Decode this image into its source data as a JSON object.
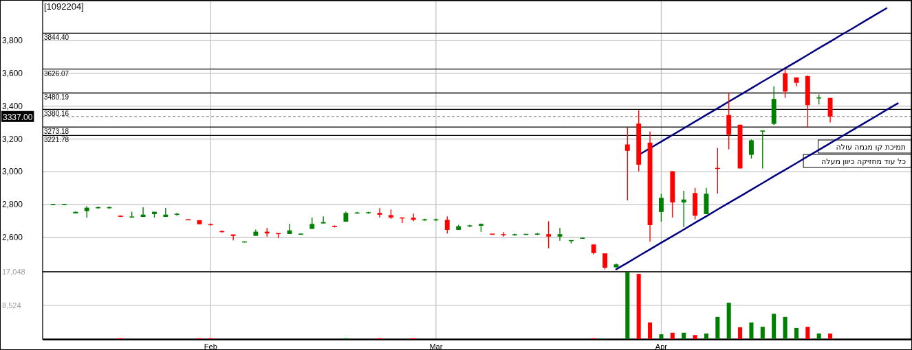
{
  "chart_data": [
    {
      "type": "candlestick",
      "title": "[1092204]",
      "categories": [
        null,
        null,
        null,
        null,
        null,
        null,
        null,
        null,
        null,
        null,
        null,
        null,
        null,
        null,
        null,
        null,
        null,
        null,
        null,
        null,
        null,
        null,
        null,
        null,
        null,
        null,
        null,
        null,
        null,
        null,
        null,
        null,
        null,
        null,
        null,
        null,
        null,
        null,
        null,
        null,
        null,
        null,
        null,
        null,
        null,
        null,
        null,
        null,
        null,
        null,
        null,
        null,
        null,
        null,
        null,
        null,
        null,
        null,
        null,
        null,
        null,
        null,
        null,
        null,
        null,
        null,
        null,
        null,
        null,
        null,
        null,
        null,
        null,
        null,
        null,
        null,
        null
      ],
      "ohlc": [
        [
          2800,
          2806,
          2797,
          2801
        ],
        [
          2800,
          2806,
          2797,
          2801
        ],
        [
          2747,
          2757,
          2747,
          2757
        ],
        [
          2761,
          2792,
          2722,
          2782
        ],
        [
          2781,
          2790,
          2775,
          2783
        ],
        [
          2781,
          2790,
          2775,
          2783
        ],
        [
          2731,
          2735,
          2725,
          2729
        ],
        [
          2724,
          2757,
          2724,
          2726
        ],
        [
          2726,
          2785,
          2726,
          2740
        ],
        [
          2743,
          2757,
          2722,
          2757
        ],
        [
          2726,
          2781,
          2726,
          2740
        ],
        [
          2741,
          2750,
          2733,
          2743
        ],
        [
          2709,
          2709,
          2708,
          2708
        ],
        [
          2706,
          2706,
          2681,
          2681
        ],
        [
          2679,
          2686,
          2674,
          2678
        ],
        [
          2637,
          2644,
          2631,
          2636
        ],
        [
          2619,
          2619,
          2583,
          2610
        ],
        [
          2573,
          2576,
          2570,
          2574
        ],
        [
          2611,
          2649,
          2611,
          2636
        ],
        [
          2636,
          2658,
          2606,
          2625
        ],
        [
          2625,
          2625,
          2597,
          2624
        ],
        [
          2622,
          2683,
          2622,
          2644
        ],
        [
          2620,
          2626,
          2617,
          2622
        ],
        [
          2653,
          2722,
          2653,
          2683
        ],
        [
          2686,
          2729,
          2686,
          2694
        ],
        [
          2669,
          2674,
          2662,
          2667
        ],
        [
          2697,
          2757,
          2697,
          2750
        ],
        [
          2749,
          2756,
          2749,
          2750
        ],
        [
          2750,
          2757,
          2745,
          2752
        ],
        [
          2750,
          2779,
          2722,
          2739
        ],
        [
          2737,
          2771,
          2714,
          2722
        ],
        [
          2720,
          2720,
          2689,
          2719
        ],
        [
          2721,
          2746,
          2700,
          2708
        ],
        [
          2707,
          2715,
          2702,
          2709
        ],
        [
          2707,
          2715,
          2702,
          2709
        ],
        [
          2708,
          2729,
          2625,
          2647
        ],
        [
          2647,
          2678,
          2647,
          2669
        ],
        [
          2670,
          2678,
          2664,
          2672
        ],
        [
          2672,
          2686,
          2635,
          2683
        ],
        [
          2622,
          2622,
          2620,
          2620
        ],
        [
          2618,
          2633,
          2606,
          2617
        ],
        [
          2616,
          2624,
          2611,
          2618
        ],
        [
          2619,
          2620,
          2619,
          2620
        ],
        [
          2620,
          2628,
          2615,
          2622
        ],
        [
          2621,
          2700,
          2535,
          2606
        ],
        [
          2606,
          2658,
          2581,
          2621
        ],
        [
          2581,
          2582,
          2564,
          2582
        ],
        [
          2595,
          2601,
          2592,
          2597
        ],
        [
          2558,
          2558,
          2497,
          2506
        ],
        [
          2504,
          2504,
          2406,
          2417
        ],
        [
          2419,
          2442,
          2419,
          2437
        ],
        [
          3167,
          3269,
          2826,
          3128
        ],
        [
          3294,
          3375,
          3003,
          3044
        ],
        [
          3178,
          3246,
          2576,
          2676
        ],
        [
          2756,
          2867,
          2697,
          2842
        ],
        [
          3004,
          3004,
          2722,
          2814
        ],
        [
          2814,
          2885,
          2664,
          2832
        ],
        [
          2871,
          2903,
          2711,
          2733
        ],
        [
          2743,
          2903,
          2743,
          2867
        ],
        [
          3022,
          3146,
          2868,
          3020
        ],
        [
          3346,
          3483,
          3137,
          3226
        ],
        [
          3287,
          3287,
          3021,
          3021
        ],
        [
          3104,
          3197,
          3081,
          3192
        ],
        [
          3248,
          3249,
          3021,
          3249
        ],
        [
          3292,
          3521,
          3285,
          3444
        ],
        [
          3600,
          3625,
          3451,
          3489
        ],
        [
          3575,
          3575,
          3521,
          3542
        ],
        [
          3583,
          3587,
          3271,
          3406
        ],
        [
          3449,
          3472,
          3410,
          3451
        ],
        [
          3450,
          3450,
          3301,
          3337
        ],
        null,
        null,
        null,
        null,
        null,
        null,
        null
      ],
      "colors": [
        "#008000",
        "#008000",
        "#008000",
        "#008000",
        "#008000",
        "#008000",
        "#ff0000",
        "#008000",
        "#008000",
        "#008000",
        "#008000",
        "#008000",
        "#ff0000",
        "#ff0000",
        "#ff0000",
        "#ff0000",
        "#ff0000",
        "#008000",
        "#008000",
        "#ff0000",
        "#ff0000",
        "#008000",
        "#008000",
        "#008000",
        "#008000",
        "#ff0000",
        "#008000",
        "#008000",
        "#008000",
        "#ff0000",
        "#ff0000",
        "#ff0000",
        "#ff0000",
        "#008000",
        "#008000",
        "#ff0000",
        "#008000",
        "#008000",
        "#008000",
        "#ff0000",
        "#ff0000",
        "#008000",
        "#008000",
        "#008000",
        "#ff0000",
        "#008000",
        "#008000",
        "#008000",
        "#ff0000",
        "#ff0000",
        "#008000",
        "#ff0000",
        "#ff0000",
        "#ff0000",
        "#008000",
        "#ff0000",
        "#008000",
        "#ff0000",
        "#008000",
        "#ff0000",
        "#ff0000",
        "#ff0000",
        "#008000",
        "#008000",
        "#008000",
        "#ff0000",
        "#ff0000",
        "#ff0000",
        "#008000",
        "#ff0000",
        null,
        null,
        null,
        null,
        null,
        null,
        null
      ],
      "series": [
        {
          "type": "line",
          "color": "#000080",
          "values": [
            null,
            null,
            null,
            null,
            null,
            null,
            null,
            null,
            null,
            null,
            null,
            null,
            null,
            null,
            null,
            null,
            null,
            null,
            null,
            null,
            null,
            null,
            null,
            null,
            null,
            null,
            null,
            null,
            null,
            null,
            null,
            null,
            null,
            null,
            null,
            null,
            null,
            null,
            null,
            null,
            null,
            null,
            null,
            null,
            null,
            null,
            null,
            null,
            null,
            null,
            null,
            null,
            3103,
            3144,
            3184,
            3225,
            3265,
            3306,
            3347,
            3387,
            3428,
            3468,
            3509,
            3550,
            3590,
            3631,
            3671,
            3712,
            3753,
            3793,
            3834,
            3874,
            3915,
            3956,
            3996,
            null,
            null
          ]
        },
        {
          "type": "line",
          "color": "#000080",
          "values": [
            null,
            null,
            null,
            null,
            null,
            null,
            null,
            null,
            null,
            null,
            null,
            null,
            null,
            null,
            null,
            null,
            null,
            null,
            null,
            null,
            null,
            null,
            null,
            null,
            null,
            null,
            null,
            null,
            null,
            null,
            null,
            null,
            null,
            null,
            null,
            null,
            null,
            null,
            null,
            null,
            null,
            null,
            null,
            null,
            null,
            null,
            null,
            null,
            null,
            null,
            2407,
            2447,
            2488,
            2528,
            2569,
            2609,
            2649,
            2690,
            2730,
            2771,
            2811,
            2851,
            2892,
            2932,
            2973,
            3013,
            3053,
            3094,
            3134,
            3175,
            3215,
            3255,
            3296,
            3336,
            3377,
            3417,
            null
          ]
        }
      ],
      "ylim": [
        2392,
        4042
      ],
      "yticks": [
        {
          "value": 2600,
          "label": "2,600"
        },
        {
          "value": 2800,
          "label": "2,800"
        },
        {
          "value": 3000,
          "label": "3,000"
        },
        {
          "value": 3200,
          "label": "3,200"
        },
        {
          "value": 3400,
          "label": "3,400"
        },
        {
          "value": 3600,
          "label": "3,600"
        },
        {
          "value": 3800,
          "label": "3,800"
        }
      ],
      "grid": true,
      "tick_labels": "y",
      "ref_lines": [
        {
          "axis": "y",
          "value": 3844.4,
          "label": "3844.40",
          "color": "#000000"
        },
        {
          "axis": "y",
          "value": 3626.07,
          "label": "3626.07",
          "color": "#000000"
        },
        {
          "axis": "y",
          "value": 3480.19,
          "label": "3480.19",
          "color": "#000000"
        },
        {
          "axis": "y",
          "value": 3380.16,
          "label": "3380.16",
          "color": "#000000"
        },
        {
          "axis": "y",
          "value": 3273.18,
          "label": "3273.18",
          "color": "#000000"
        },
        {
          "axis": "y",
          "value": 3221.78,
          "label": "3221.78",
          "color": "#000000"
        },
        {
          "axis": "y",
          "value": 3337.0,
          "label": "3337.00",
          "color": "#808080",
          "line_style": "dashed"
        }
      ],
      "annotations": [
        "תמיכת קו מגמה עולה",
        "כל עוד מחזיקה כיוון מעלה"
      ]
    },
    {
      "type": "bar",
      "categories": [
        null,
        null,
        null,
        null,
        null,
        null,
        null,
        null,
        null,
        null,
        null,
        null,
        null,
        null,
        "Feb",
        null,
        null,
        null,
        null,
        null,
        null,
        null,
        null,
        null,
        null,
        null,
        null,
        null,
        null,
        null,
        null,
        null,
        null,
        null,
        "Mar",
        null,
        null,
        null,
        null,
        null,
        null,
        null,
        null,
        null,
        null,
        null,
        null,
        null,
        null,
        null,
        null,
        null,
        null,
        null,
        "Apr",
        null,
        null,
        null,
        null,
        null,
        null,
        null,
        null,
        null,
        null,
        null,
        null,
        null,
        null,
        null,
        null,
        null,
        null,
        null,
        null,
        null,
        null
      ],
      "values": [
        0,
        0,
        0,
        0,
        0,
        0,
        200,
        0,
        0,
        0,
        0,
        0,
        0,
        200,
        200,
        0,
        0,
        0,
        0,
        0,
        0,
        0,
        0,
        0,
        0,
        0,
        200,
        0,
        0,
        200,
        0,
        0,
        200,
        0,
        0,
        0,
        0,
        0,
        0,
        0,
        0,
        0,
        0,
        0,
        0,
        0,
        0,
        0,
        200,
        0,
        0,
        17000,
        16500,
        4200,
        1200,
        1600,
        1600,
        1000,
        1400,
        5600,
        9200,
        3000,
        4200,
        3100,
        6400,
        5600,
        2800,
        3100,
        1400,
        1400,
        null,
        null,
        null,
        null,
        null,
        null,
        null
      ],
      "colors": [
        "#008000",
        "#008000",
        "#008000",
        "#008000",
        "#008000",
        "#008000",
        "#ff0000",
        "#008000",
        "#008000",
        "#008000",
        "#008000",
        "#008000",
        "#ff0000",
        "#ff0000",
        "#ff0000",
        "#ff0000",
        "#ff0000",
        "#008000",
        "#008000",
        "#ff0000",
        "#ff0000",
        "#008000",
        "#008000",
        "#008000",
        "#008000",
        "#ff0000",
        "#008000",
        "#008000",
        "#008000",
        "#ff0000",
        "#ff0000",
        "#ff0000",
        "#ff0000",
        "#008000",
        "#008000",
        "#ff0000",
        "#008000",
        "#008000",
        "#008000",
        "#ff0000",
        "#ff0000",
        "#008000",
        "#008000",
        "#008000",
        "#ff0000",
        "#008000",
        "#008000",
        "#008000",
        "#ff0000",
        "#ff0000",
        "#008000",
        "#008000",
        "#ff0000",
        "#ff0000",
        "#008000",
        "#ff0000",
        "#008000",
        "#ff0000",
        "#008000",
        "#008000",
        "#008000",
        "#ff0000",
        "#008000",
        "#008000",
        "#008000",
        "#008000",
        "#008000",
        "#ff0000",
        "#008000",
        "#ff0000",
        null,
        null,
        null,
        null,
        null,
        null,
        null
      ],
      "ylim": [
        0,
        17048
      ],
      "yticks": [
        {
          "value": 8524,
          "label": "8,524"
        },
        {
          "value": 17048,
          "label": "17,048"
        }
      ],
      "grid": true
    }
  ]
}
